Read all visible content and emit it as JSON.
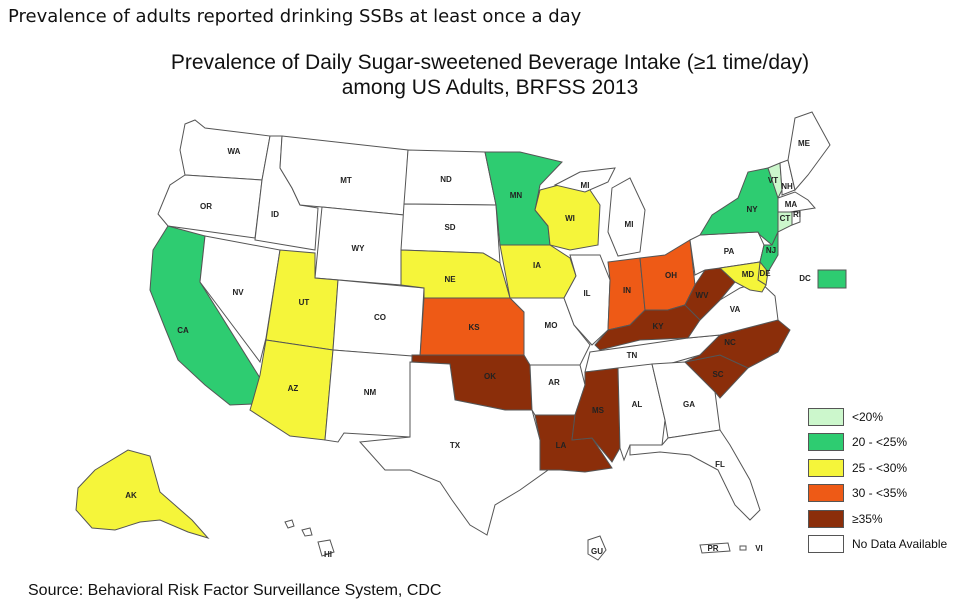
{
  "caption": "Prevalence of adults reported drinking SSBs at least once a day",
  "title_line1": "Prevalence of Daily Sugar-sweetened Beverage Intake (≥1 time/day)",
  "title_line2": "among US Adults, BRFSS 2013",
  "source": "Source: Behavioral Risk Factor Surveillance System, CDC",
  "colors": {
    "lt20": "#ccf7cc",
    "c20": "#2ecc71",
    "c25": "#f5f53a",
    "c30": "#ee5a16",
    "c35": "#8b2e0a",
    "nodata": "#ffffff"
  },
  "legend": [
    {
      "label": "<20%",
      "category": "lt20"
    },
    {
      "label": "20 - <25%",
      "category": "c20"
    },
    {
      "label": "25 - <30%",
      "category": "c25"
    },
    {
      "label": "30 - <35%",
      "category": "c30"
    },
    {
      "label": "≥35%",
      "category": "c35"
    },
    {
      "label": "No Data Available",
      "category": "nodata"
    }
  ],
  "states": {
    "WA": {
      "label": "WA",
      "category": "nodata"
    },
    "OR": {
      "label": "OR",
      "category": "nodata"
    },
    "CA": {
      "label": "CA",
      "category": "c20"
    },
    "ID": {
      "label": "ID",
      "category": "nodata"
    },
    "NV": {
      "label": "NV",
      "category": "nodata"
    },
    "MT": {
      "label": "MT",
      "category": "nodata"
    },
    "WY": {
      "label": "WY",
      "category": "nodata"
    },
    "UT": {
      "label": "UT",
      "category": "c25"
    },
    "AZ": {
      "label": "AZ",
      "category": "c25"
    },
    "CO": {
      "label": "CO",
      "category": "nodata"
    },
    "NM": {
      "label": "NM",
      "category": "nodata"
    },
    "ND": {
      "label": "ND",
      "category": "nodata"
    },
    "SD": {
      "label": "SD",
      "category": "nodata"
    },
    "NE": {
      "label": "NE",
      "category": "c25"
    },
    "KS": {
      "label": "KS",
      "category": "c30"
    },
    "OK": {
      "label": "OK",
      "category": "c35"
    },
    "TX": {
      "label": "TX",
      "category": "nodata"
    },
    "MN": {
      "label": "MN",
      "category": "c20"
    },
    "IA": {
      "label": "IA",
      "category": "c25"
    },
    "MO": {
      "label": "MO",
      "category": "nodata"
    },
    "AR": {
      "label": "AR",
      "category": "nodata"
    },
    "LA": {
      "label": "LA",
      "category": "c35"
    },
    "WI": {
      "label": "WI",
      "category": "c25"
    },
    "IL": {
      "label": "IL",
      "category": "nodata"
    },
    "MI": {
      "label": "MI",
      "category": "nodata"
    },
    "IN": {
      "label": "IN",
      "category": "c30"
    },
    "OH": {
      "label": "OH",
      "category": "c30"
    },
    "KY": {
      "label": "KY",
      "category": "c35"
    },
    "TN": {
      "label": "TN",
      "category": "nodata"
    },
    "MS": {
      "label": "MS",
      "category": "c35"
    },
    "AL": {
      "label": "AL",
      "category": "nodata"
    },
    "GA": {
      "label": "GA",
      "category": "nodata"
    },
    "FL": {
      "label": "FL",
      "category": "nodata"
    },
    "SC": {
      "label": "SC",
      "category": "c35"
    },
    "NC": {
      "label": "NC",
      "category": "c35"
    },
    "VA": {
      "label": "VA",
      "category": "nodata"
    },
    "WV": {
      "label": "WV",
      "category": "c35"
    },
    "PA": {
      "label": "PA",
      "category": "nodata"
    },
    "NY": {
      "label": "NY",
      "category": "c20"
    },
    "NJ": {
      "label": "NJ",
      "category": "c20"
    },
    "DE": {
      "label": "DE",
      "category": "c25"
    },
    "MD": {
      "label": "MD",
      "category": "c25"
    },
    "VT": {
      "label": "VT",
      "category": "lt20"
    },
    "NH": {
      "label": "NH",
      "category": "nodata"
    },
    "ME": {
      "label": "ME",
      "category": "nodata"
    },
    "MA": {
      "label": "MA",
      "category": "nodata"
    },
    "CT": {
      "label": "CT",
      "category": "lt20"
    },
    "RI": {
      "label": "RI",
      "category": "nodata"
    },
    "DC": {
      "label": "DC",
      "category": "c20"
    },
    "AK": {
      "label": "AK",
      "category": "c25"
    },
    "HI": {
      "label": "HI",
      "category": "nodata"
    },
    "GU": {
      "label": "GU",
      "category": "nodata"
    },
    "PR": {
      "label": "PR",
      "category": "nodata"
    },
    "VI": {
      "label": "VI",
      "category": "nodata"
    }
  }
}
